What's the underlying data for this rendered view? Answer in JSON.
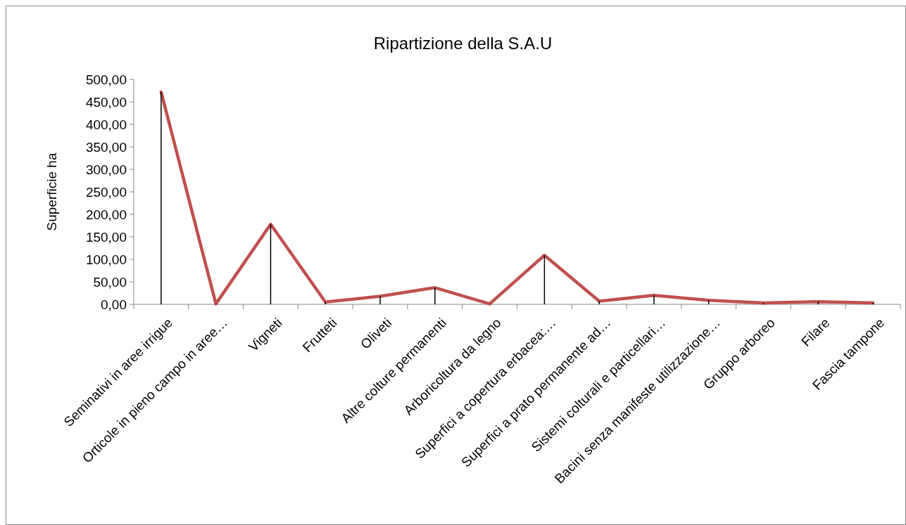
{
  "chart_data": {
    "type": "line",
    "title": "Ripartizione della S.A.U",
    "ylabel": "Superficie ha",
    "categories": [
      "Seminativi in aree irrigue",
      "Orticole in pieno campo in aree…",
      "Vigneti",
      "Frutteti",
      "Oliveti",
      "Altre colture permanenti",
      "Arboricoltura da legno",
      "Superfici a copertura erbacea:…",
      "Superfici a prato permanente ad…",
      "Sistemi colturali e particellari…",
      "Bacini senza manifeste utilizzazione…",
      "Gruppo arboreo",
      "Filare",
      "Fascia tampone"
    ],
    "series": [
      {
        "type": "bar",
        "color": "#000000",
        "values": [
          472,
          1,
          178,
          5,
          18,
          37,
          1,
          109,
          7,
          20,
          9,
          3,
          6,
          3
        ]
      },
      {
        "color": "#c0504d",
        "values": [
          472,
          1,
          178,
          5,
          18,
          37,
          1,
          109,
          7,
          20,
          9,
          3,
          6,
          3
        ]
      }
    ],
    "ylim": [
      0,
      500
    ],
    "yticks": [
      {
        "value": 0,
        "label": "0,00"
      },
      {
        "value": 50,
        "label": "50,00"
      },
      {
        "value": 100,
        "label": "100,00"
      },
      {
        "value": 150,
        "label": "150,00"
      },
      {
        "value": 200,
        "label": "200,00"
      },
      {
        "value": 250,
        "label": "250,00"
      },
      {
        "value": 300,
        "label": "300,00"
      },
      {
        "value": 350,
        "label": "350,00"
      },
      {
        "value": 400,
        "label": "400,00"
      },
      {
        "value": 450,
        "label": "450,00"
      },
      {
        "value": 500,
        "label": "500,00"
      }
    ],
    "marker": "none",
    "line_style": "solid"
  }
}
